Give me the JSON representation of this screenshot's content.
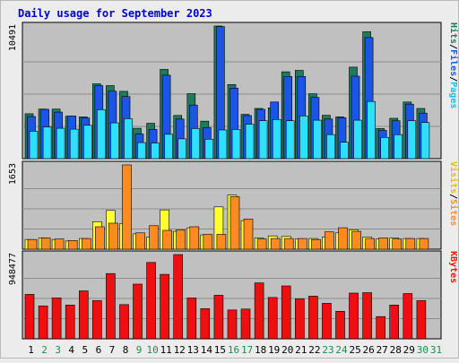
{
  "chart_data": {
    "type": "bar",
    "title": "Daily usage for September 2023",
    "days": [
      "1",
      "2",
      "3",
      "4",
      "5",
      "6",
      "7",
      "8",
      "9",
      "10",
      "11",
      "12",
      "13",
      "14",
      "15",
      "16",
      "17",
      "18",
      "19",
      "20",
      "21",
      "22",
      "23",
      "24",
      "25",
      "26",
      "27",
      "28",
      "29",
      "30",
      "31"
    ],
    "weekend_days": [
      "2",
      "3",
      "9",
      "10",
      "16",
      "17",
      "23",
      "24",
      "30",
      "31"
    ],
    "panels": [
      {
        "id": "requests",
        "max_label": "10491",
        "ymax": 10491,
        "label_parts": [
          "Pages",
          "Files",
          "Hits"
        ],
        "series": [
          {
            "name": "Hits",
            "color": "#1e7a5a",
            "values": [
              3550,
              3920,
              3920,
              3350,
              3300,
              5920,
              5780,
              5320,
              2400,
              2800,
              7060,
              3420,
              5140,
              2960,
              10491,
              5860,
              3500,
              3970,
              4020,
              6870,
              6980,
              5130,
              3430,
              3300,
              7240,
              10040,
              2380,
              3190,
              4480,
              3970
            ]
          },
          {
            "name": "Files",
            "color": "#1a55e6",
            "values": [
              3330,
              3900,
              3680,
              3380,
              3220,
              5780,
              5340,
              4910,
              1950,
              2310,
              6600,
              3130,
              4240,
              2460,
              10440,
              5580,
              3400,
              3900,
              4480,
              6500,
              6500,
              4840,
              3130,
              3240,
              6520,
              9580,
              2240,
              3000,
              4310,
              3600
            ]
          },
          {
            "name": "Pages",
            "color": "#2ee0ff",
            "values": [
              2170,
              2500,
              2400,
              2330,
              2640,
              3870,
              2830,
              3160,
              1270,
              1230,
              1930,
              1570,
              2380,
              1540,
              2270,
              2310,
              2720,
              3000,
              3100,
              3000,
              3380,
              3040,
              1900,
              1300,
              3040,
              4520,
              1680,
              1900,
              3000,
              2860
            ]
          }
        ]
      },
      {
        "id": "visits",
        "max_label": "1653",
        "ymax": 1653,
        "label_parts": [
          "Sites",
          "Visits"
        ],
        "series": [
          {
            "name": "Visits",
            "color": "#ffff30",
            "values": [
              190,
              220,
              190,
              160,
              210,
              540,
              760,
              500,
              300,
              240,
              770,
              350,
              420,
              280,
              830,
              1060,
              560,
              220,
              260,
              250,
              200,
              210,
              240,
              320,
              380,
              240,
              200,
              220,
              210,
              210
            ]
          },
          {
            "name": "Sites",
            "color": "#ff8a20",
            "values": [
              190,
              220,
              200,
              170,
              210,
              440,
              510,
              1653,
              320,
              460,
              370,
              380,
              440,
              290,
              290,
              1030,
              590,
              200,
              210,
              210,
              210,
              190,
              340,
              420,
              350,
              210,
              220,
              200,
              210,
              210
            ]
          }
        ]
      },
      {
        "id": "kbytes",
        "max_label": "948477",
        "ymax": 948477,
        "label_parts": [
          "KBytes"
        ],
        "series": [
          {
            "name": "KBytes",
            "color": "#ee1010",
            "values": [
              500000,
              370000,
              460000,
              380000,
              540000,
              430000,
              735000,
              385000,
              615000,
              860000,
              725000,
              948477,
              460000,
              340000,
              490000,
              325000,
              335000,
              630000,
              465000,
              595000,
              450000,
              480000,
              400000,
              310000,
              515000,
              520000,
              250000,
              380000,
              510000,
              430000
            ]
          }
        ]
      }
    ]
  }
}
